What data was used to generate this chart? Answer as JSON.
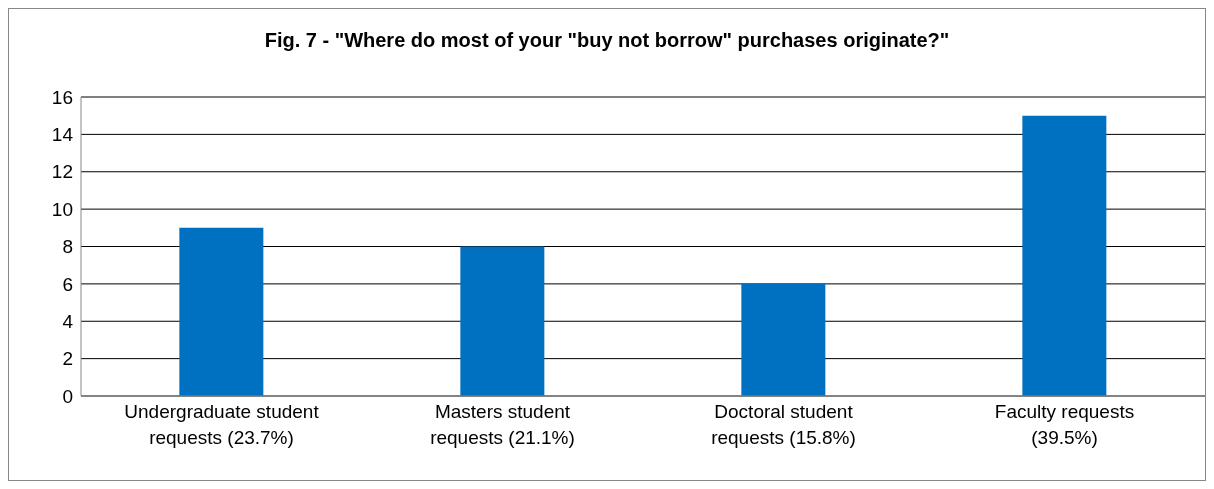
{
  "chart_data": {
    "type": "bar",
    "title": "Fig. 7 - \"Where do most of your \"buy not borrow\" purchases originate?\"",
    "categories": [
      "Undergraduate student requests (23.7%)",
      "Masters student requests (21.1%)",
      "Doctoral student requests (15.8%)",
      "Faculty requests (39.5%)"
    ],
    "values": [
      9,
      8,
      6,
      15
    ],
    "color": "#0070c0",
    "ylim": [
      0,
      16
    ],
    "yticks": [
      0,
      2,
      4,
      6,
      8,
      10,
      12,
      14,
      16
    ],
    "grid": "y",
    "legend": false
  }
}
